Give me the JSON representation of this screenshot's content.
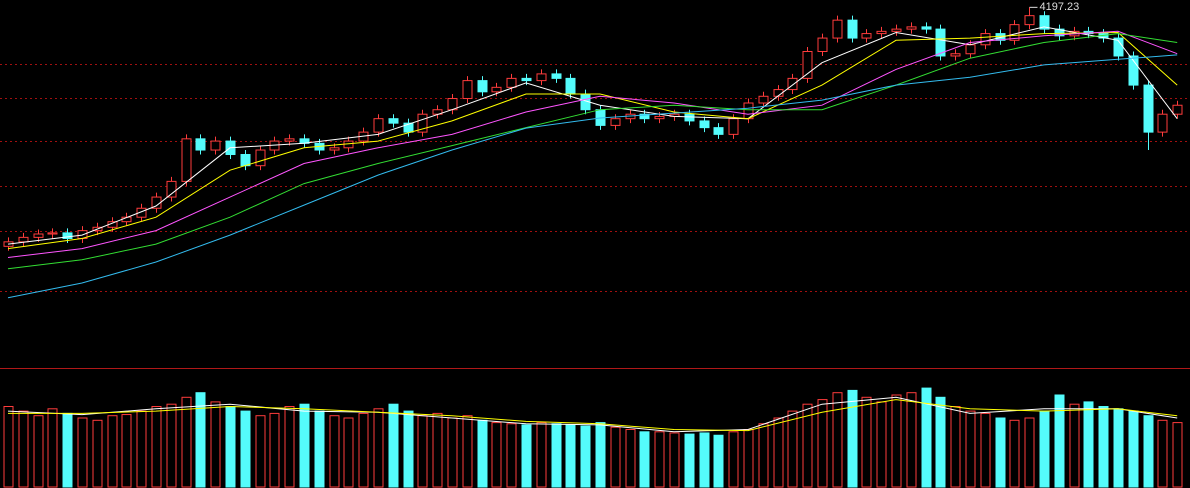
{
  "chart_data": {
    "type": "candlestick",
    "up_color": "#ff3c3c",
    "down_color": "#54fcfc",
    "grid_color": "#a01010",
    "ylim": [
      2600,
      4230
    ],
    "grid_lines": [
      3944,
      3792,
      3600,
      3399,
      3198,
      2930
    ],
    "open": [
      3130,
      3150,
      3170,
      3185,
      3190,
      3165,
      3200,
      3215,
      3240,
      3260,
      3300,
      3350,
      3420,
      3610,
      3560,
      3600,
      3540,
      3490,
      3560,
      3600,
      3610,
      3590,
      3560,
      3570,
      3600,
      3640,
      3700,
      3680,
      3640,
      3720,
      3740,
      3790,
      3870,
      3820,
      3840,
      3880,
      3870,
      3900,
      3880,
      3810,
      3740,
      3670,
      3700,
      3720,
      3700,
      3710,
      3720,
      3690,
      3660,
      3630,
      3700,
      3770,
      3800,
      3830,
      3880,
      4000,
      4060,
      4140,
      4060,
      4080,
      4090,
      4100,
      4110,
      4100,
      3980,
      3990,
      4030,
      4080,
      4050,
      4120,
      4160,
      4100,
      4070,
      4090,
      4080,
      4060,
      3980,
      3850,
      3640,
      3720
    ],
    "high": [
      3170,
      3190,
      3205,
      3210,
      3210,
      3220,
      3235,
      3260,
      3280,
      3320,
      3370,
      3440,
      3630,
      3630,
      3620,
      3620,
      3560,
      3580,
      3620,
      3630,
      3630,
      3610,
      3590,
      3620,
      3660,
      3720,
      3720,
      3700,
      3740,
      3760,
      3810,
      3890,
      3890,
      3860,
      3900,
      3900,
      3920,
      3920,
      3900,
      3830,
      3760,
      3720,
      3740,
      3740,
      3730,
      3740,
      3740,
      3710,
      3680,
      3720,
      3790,
      3820,
      3850,
      3900,
      4020,
      4080,
      4160,
      4160,
      4100,
      4110,
      4120,
      4130,
      4130,
      4120,
      4010,
      4050,
      4100,
      4100,
      4140,
      4197.23,
      4180,
      4120,
      4110,
      4110,
      4100,
      4080,
      4000,
      3870,
      3740,
      3780
    ],
    "low": [
      3110,
      3130,
      3150,
      3165,
      3145,
      3145,
      3180,
      3195,
      3220,
      3240,
      3280,
      3330,
      3400,
      3540,
      3540,
      3520,
      3470,
      3470,
      3540,
      3580,
      3570,
      3540,
      3540,
      3550,
      3580,
      3620,
      3660,
      3620,
      3620,
      3700,
      3720,
      3770,
      3800,
      3800,
      3820,
      3850,
      3850,
      3860,
      3790,
      3720,
      3650,
      3650,
      3680,
      3680,
      3680,
      3690,
      3670,
      3640,
      3610,
      3610,
      3680,
      3750,
      3780,
      3810,
      3860,
      3980,
      4040,
      4040,
      4040,
      4060,
      4070,
      4080,
      4080,
      3960,
      3960,
      3970,
      4010,
      4030,
      4030,
      4100,
      4080,
      4050,
      4050,
      4060,
      4040,
      3960,
      3830,
      3560,
      3620,
      3700
    ],
    "close": [
      3150,
      3170,
      3185,
      3190,
      3165,
      3200,
      3215,
      3240,
      3260,
      3300,
      3350,
      3420,
      3610,
      3560,
      3600,
      3540,
      3490,
      3560,
      3600,
      3610,
      3590,
      3560,
      3570,
      3600,
      3640,
      3700,
      3680,
      3640,
      3720,
      3740,
      3790,
      3870,
      3820,
      3840,
      3880,
      3870,
      3900,
      3880,
      3810,
      3740,
      3670,
      3700,
      3720,
      3700,
      3710,
      3720,
      3690,
      3660,
      3630,
      3700,
      3770,
      3800,
      3830,
      3880,
      4000,
      4060,
      4140,
      4060,
      4080,
      4090,
      4100,
      4110,
      4100,
      3980,
      3990,
      4030,
      4080,
      4050,
      4120,
      4160,
      4100,
      4070,
      4090,
      4080,
      4060,
      3980,
      3850,
      3640,
      3720,
      3760
    ],
    "ma": [
      {
        "color": "#ffffff",
        "x": [
          0,
          5,
          10,
          15,
          20,
          25,
          30,
          35,
          40,
          45,
          50,
          55,
          60,
          65,
          70,
          75,
          79
        ],
        "values": [
          3140,
          3180,
          3310,
          3570,
          3590,
          3630,
          3740,
          3860,
          3760,
          3710,
          3700,
          3950,
          4085,
          4030,
          4110,
          4050,
          3700
        ]
      },
      {
        "color": "#ffff00",
        "x": [
          0,
          5,
          10,
          15,
          20,
          25,
          30,
          35,
          40,
          45,
          50,
          55,
          60,
          65,
          70,
          75,
          79
        ],
        "values": [
          3120,
          3165,
          3260,
          3470,
          3570,
          3600,
          3690,
          3810,
          3810,
          3730,
          3700,
          3850,
          4050,
          4060,
          4080,
          4085,
          3850
        ]
      },
      {
        "color": "#ff55ff",
        "x": [
          0,
          5,
          10,
          15,
          20,
          25,
          30,
          35,
          40,
          45,
          50,
          55,
          60,
          65,
          70,
          75,
          79
        ],
        "values": [
          3080,
          3120,
          3200,
          3350,
          3500,
          3570,
          3630,
          3730,
          3800,
          3770,
          3720,
          3760,
          3920,
          4040,
          4070,
          4090,
          3990
        ]
      },
      {
        "color": "#33dd33",
        "x": [
          0,
          5,
          10,
          15,
          20,
          25,
          30,
          35,
          40,
          45,
          50,
          55,
          60,
          65,
          70,
          75,
          79
        ],
        "values": [
          3030,
          3070,
          3140,
          3260,
          3410,
          3500,
          3580,
          3660,
          3740,
          3760,
          3740,
          3740,
          3850,
          3970,
          4040,
          4080,
          4040
        ]
      },
      {
        "color": "#33bbee",
        "x": [
          0,
          5,
          10,
          15,
          20,
          25,
          30,
          35,
          40,
          45,
          50,
          55,
          60,
          65,
          70,
          75,
          79
        ],
        "values": [
          2900,
          2966,
          3060,
          3180,
          3314,
          3448,
          3560,
          3658,
          3703,
          3725,
          3747,
          3783,
          3850,
          3885,
          3940,
          3965,
          3985
        ]
      }
    ],
    "volume": {
      "ylim": [
        0,
        100
      ],
      "values": [
        70,
        66,
        62,
        68,
        64,
        60,
        58,
        62,
        63,
        66,
        70,
        72,
        78,
        82,
        74,
        70,
        66,
        62,
        64,
        70,
        72,
        66,
        62,
        60,
        64,
        68,
        72,
        66,
        62,
        64,
        60,
        62,
        58,
        56,
        55,
        54,
        56,
        55,
        54,
        53,
        56,
        52,
        50,
        48,
        48,
        47,
        46,
        47,
        45,
        48,
        50,
        55,
        60,
        66,
        72,
        76,
        82,
        84,
        78,
        74,
        80,
        82,
        86,
        78,
        70,
        66,
        64,
        60,
        58,
        60,
        66,
        80,
        72,
        74,
        70,
        68,
        66,
        62,
        58,
        56
      ],
      "ma": [
        {
          "color": "#ffffff",
          "x": [
            0,
            5,
            10,
            15,
            20,
            25,
            30,
            35,
            40,
            45,
            50,
            55,
            60,
            65,
            70,
            75,
            79
          ],
          "values": [
            66,
            63,
            68,
            72,
            66,
            65,
            60,
            55,
            54,
            48,
            50,
            72,
            78,
            64,
            68,
            68,
            60
          ]
        },
        {
          "color": "#ffff00",
          "x": [
            0,
            5,
            10,
            15,
            20,
            25,
            30,
            35,
            40,
            45,
            50,
            55,
            60,
            65,
            70,
            75,
            79
          ],
          "values": [
            64,
            64,
            66,
            70,
            68,
            65,
            62,
            57,
            55,
            50,
            49,
            65,
            76,
            68,
            66,
            68,
            62
          ]
        }
      ]
    }
  }
}
